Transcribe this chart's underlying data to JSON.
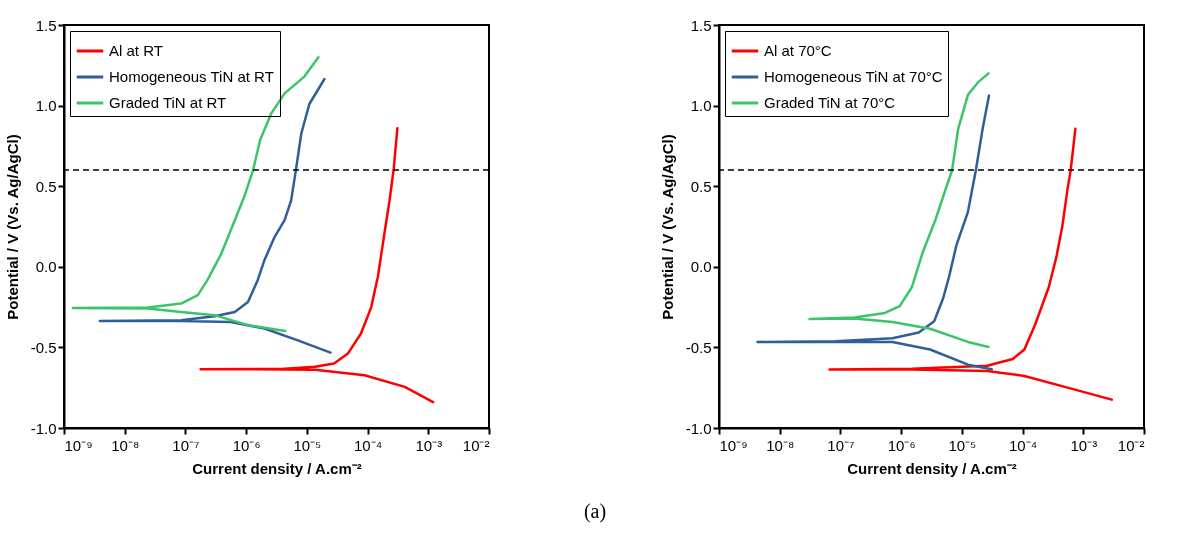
{
  "chart_data": [
    {
      "type": "line",
      "xlabel": "Current density / A.cm⁻²",
      "ylabel": "Potential / V (Vs. Ag/AgCl)",
      "log": "x",
      "grid": false,
      "legend": "top left",
      "xlim": [
        1e-09,
        0.01
      ],
      "xticks": [
        {
          "value": 1e-09,
          "label": "10⁻⁹"
        },
        {
          "value": 1e-08,
          "label": "10⁻⁸"
        },
        {
          "value": 1e-07,
          "label": "10⁻⁷"
        },
        {
          "value": 1e-06,
          "label": "10⁻⁶"
        },
        {
          "value": 1e-05,
          "label": "10⁻⁵"
        },
        {
          "value": 0.0001,
          "label": "10⁻⁴"
        },
        {
          "value": 0.001,
          "label": "10⁻³"
        },
        {
          "value": 0.01,
          "label": "10⁻²"
        }
      ],
      "ylim": [
        -1.0,
        1.5
      ],
      "yticks": [
        {
          "value": -1,
          "label": "-1.0"
        },
        -0.5,
        {
          "value": 0,
          "label": "0.0"
        },
        0.5,
        {
          "value": 1,
          "label": "1.0"
        },
        1.5
      ],
      "ref_lines": [
        {
          "axis": "y",
          "value": 0.6,
          "label": null,
          "color": "#000000",
          "line_style": "dashed"
        }
      ],
      "annotations": [
        "(a)"
      ],
      "series": [
        {
          "name": "Al at RT",
          "color": "#ff0000",
          "x": [
            0.0012,
            0.00041,
            8.9e-05,
            1.35e-05,
            1.07e-06,
            1.78e-07,
            3.8e-06,
            1.35e-05,
            2.8e-05,
            4.7e-05,
            7.8e-05,
            0.000115,
            0.000148,
            0.00019,
            0.00023,
            0.00027,
            0.00031
          ],
          "values": [
            -0.84,
            -0.745,
            -0.673,
            -0.638,
            -0.636,
            -0.636,
            -0.634,
            -0.62,
            -0.6,
            -0.54,
            -0.414,
            -0.25,
            -0.06,
            0.21,
            0.41,
            0.61,
            0.86
          ]
        },
        {
          "name": "Homogeneous TiN at RT",
          "color": "#2f5f98",
          "x": [
            2.45e-05,
            7.1e-06,
            2e-06,
            5.6e-07,
            8.5e-08,
            3.9e-09,
            8.5e-08,
            3e-07,
            6.5e-07,
            1.07e-06,
            1.55e-06,
            2e-06,
            2.95e-06,
            4.3e-06,
            5.5e-06,
            6.6e-06,
            8.1e-06,
            1.1e-05,
            1.95e-05
          ],
          "values": [
            -0.532,
            -0.456,
            -0.383,
            -0.342,
            -0.336,
            -0.336,
            -0.332,
            -0.307,
            -0.28,
            -0.218,
            -0.083,
            0.041,
            0.186,
            0.29,
            0.41,
            0.6,
            0.827,
            1.01,
            1.165
          ]
        },
        {
          "name": "Graded TiN at RT",
          "color": "#3cc46a",
          "x": [
            4.4e-06,
            1.07e-06,
            3e-07,
            8.5e-08,
            2.4e-08,
            1.4e-09,
            2.4e-08,
            8.5e-08,
            1.6e-07,
            2.3e-07,
            3.9e-07,
            6.5e-07,
            9.3e-07,
            1.3e-06,
            1.7e-06,
            2.6e-06,
            4.3e-06,
            9.1e-06,
            1.55e-05
          ],
          "values": [
            -0.398,
            -0.362,
            -0.3,
            -0.28,
            -0.259,
            -0.255,
            -0.253,
            -0.228,
            -0.176,
            -0.083,
            0.082,
            0.289,
            0.434,
            0.6,
            0.786,
            0.952,
            1.076,
            1.18,
            1.3
          ]
        }
      ]
    },
    {
      "type": "line",
      "xlabel": "Current density / A.cm⁻²",
      "ylabel": "Potential / V (Vs. Ag/AgCl)",
      "log": "x",
      "grid": false,
      "legend": "top left",
      "xlim": [
        1e-09,
        0.01
      ],
      "xticks": [
        {
          "value": 1e-09,
          "label": "10⁻⁹"
        },
        {
          "value": 1e-08,
          "label": "10⁻⁸"
        },
        {
          "value": 1e-07,
          "label": "10⁻⁷"
        },
        {
          "value": 1e-06,
          "label": "10⁻⁶"
        },
        {
          "value": 1e-05,
          "label": "10⁻⁵"
        },
        {
          "value": 0.0001,
          "label": "10⁻⁴"
        },
        {
          "value": 0.001,
          "label": "10⁻³"
        },
        {
          "value": 0.01,
          "label": "10⁻²"
        }
      ],
      "ylim": [
        -1.0,
        1.5
      ],
      "yticks": [
        {
          "value": -1,
          "label": "-1.0"
        },
        -0.5,
        {
          "value": 0,
          "label": "0.0"
        },
        0.5,
        {
          "value": 1,
          "label": "1.0"
        },
        1.5
      ],
      "ref_lines": [
        {
          "axis": "y",
          "value": 0.6,
          "label": null,
          "color": "#000000",
          "line_style": "dashed"
        }
      ],
      "series": [
        {
          "name": "Al at 70°C",
          "color": "#ff0000",
          "x": [
            0.00295,
            0.00068,
            0.000107,
            2.6e-05,
            1.5e-06,
            6.6e-08,
            1.5e-06,
            2.6e-05,
            6.9e-05,
            0.000107,
            0.00016,
            0.00027,
            0.00036,
            0.00045,
            0.00055,
            0.00062,
            0.00074
          ],
          "values": [
            -0.824,
            -0.759,
            -0.677,
            -0.646,
            -0.637,
            -0.637,
            -0.632,
            -0.614,
            -0.572,
            -0.513,
            -0.361,
            -0.127,
            0.06,
            0.248,
            0.482,
            0.599,
            0.856
          ]
        },
        {
          "name": "Homogeneous TiN at 70°C",
          "color": "#2f5f98",
          "x": [
            3.1e-05,
            1.26e-05,
            3e-06,
            7.2e-07,
            8.3e-08,
            4.3e-09,
            8.3e-08,
            7.2e-07,
            1.95e-06,
            3.5e-06,
            4.9e-06,
            6.2e-06,
            8.1e-06,
            1.26e-05,
            1.7e-05,
            2.2e-05,
            2.8e-05
          ],
          "values": [
            -0.635,
            -0.607,
            -0.513,
            -0.466,
            -0.466,
            -0.466,
            -0.462,
            -0.443,
            -0.408,
            -0.338,
            -0.197,
            -0.057,
            0.131,
            0.341,
            0.599,
            0.856,
            1.062
          ]
        },
        {
          "name": "Graded TiN at 70°C",
          "color": "#3cc46a",
          "x": [
            2.75e-05,
            1.26e-05,
            3e-06,
            7.2e-07,
            1.7e-07,
            3.1e-08,
            1.7e-07,
            5.4e-07,
            9.5e-07,
            1.5e-06,
            2.24e-06,
            3.7e-06,
            5.4e-06,
            6.9e-06,
            8.7e-06,
            1.26e-05,
            1.9e-05,
            2.75e-05
          ],
          "values": [
            -0.497,
            -0.466,
            -0.384,
            -0.342,
            -0.321,
            -0.324,
            -0.314,
            -0.286,
            -0.244,
            -0.127,
            0.084,
            0.295,
            0.482,
            0.599,
            0.856,
            1.067,
            1.149,
            1.2
          ]
        }
      ]
    }
  ]
}
